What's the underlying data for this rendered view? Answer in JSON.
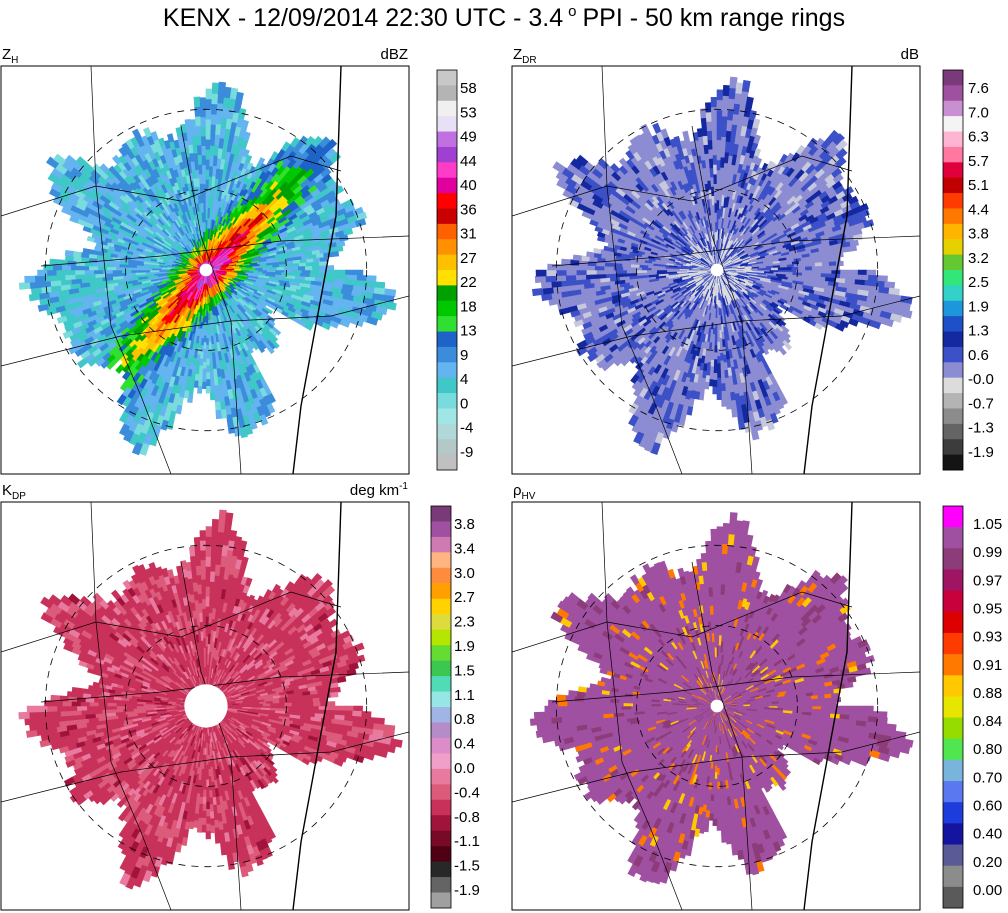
{
  "chart_data": {
    "type": "heatmap",
    "title": {
      "prefix": "KENX - 12/09/2014 22:30 UTC - 3.4",
      "degree": "o",
      "suffix": "PPI -  50 km range rings"
    },
    "panels": [
      {
        "id": "zh",
        "name": {
          "base": "Z",
          "sub": "H"
        },
        "units": {
          "base": "dBZ",
          "sup": ""
        },
        "colorbar_ticks": [
          "58",
          "53",
          "49",
          "44",
          "40",
          "36",
          "31",
          "27",
          "22",
          "18",
          "13",
          "9",
          "4",
          "0",
          "-4",
          "-9"
        ],
        "colorbar_colors": [
          "#c8c8c8",
          "#b4b4b4",
          "#f0f0f0",
          "#e8e0f4",
          "#c070e0",
          "#a040d0",
          "#ff3cc8",
          "#e000a0",
          "#ff0000",
          "#c80000",
          "#ff6000",
          "#ff9000",
          "#ffc000",
          "#ffe000",
          "#00a000",
          "#00c800",
          "#30e030",
          "#1e64c8",
          "#3c8cdc",
          "#64b4f0",
          "#40c8c8",
          "#78dcdc",
          "#a0e6e6",
          "#b0d8d8",
          "#b4c8c8",
          "#c0c0c0"
        ],
        "field": {
          "kind": "zh",
          "coverage_km": 112
        },
        "center_dot": {
          "radius_km": 1.6
        }
      },
      {
        "id": "zdr",
        "name": {
          "base": "Z",
          "sub": "DR"
        },
        "units": {
          "base": "dB",
          "sup": ""
        },
        "colorbar_ticks": [
          "7.6",
          "7.0",
          "6.3",
          "5.7",
          "5.1",
          "4.4",
          "3.8",
          "3.2",
          "2.5",
          "1.9",
          "1.3",
          "0.6",
          "-0.0",
          "-0.7",
          "-1.3",
          "-1.9"
        ],
        "colorbar_colors": [
          "#7a3a7a",
          "#a050a0",
          "#c890d0",
          "#f4f4f4",
          "#ffb4d2",
          "#ff78a0",
          "#e0003c",
          "#c00000",
          "#ff3c00",
          "#ff7800",
          "#ffb400",
          "#e6d000",
          "#64c832",
          "#32e678",
          "#32d2c8",
          "#1e96dc",
          "#1e50c8",
          "#1428a0",
          "#3c50c8",
          "#8c8cd2",
          "#dcdcdc",
          "#b4b4b4",
          "#8c8c8c",
          "#646464",
          "#3c3c3c",
          "#141414"
        ],
        "field": {
          "kind": "zdr",
          "coverage_km": 112
        },
        "center_dot": {
          "radius_km": 1.6
        }
      },
      {
        "id": "kdp",
        "name": {
          "base": "K",
          "sub": "DP"
        },
        "units": {
          "base": "deg km",
          "sup": "-1"
        },
        "colorbar_ticks": [
          "3.8",
          "3.4",
          "3.0",
          "2.7",
          "2.3",
          "1.9",
          "1.5",
          "1.1",
          "0.8",
          "0.4",
          "0.0",
          "-0.4",
          "-0.8",
          "-1.1",
          "-1.5",
          "-1.9"
        ],
        "colorbar_colors": [
          "#7a3a7a",
          "#a050a0",
          "#d07ab4",
          "#ffb482",
          "#ff8c3c",
          "#ffa000",
          "#ffd200",
          "#dcdc3c",
          "#b4e600",
          "#64dc32",
          "#3cc850",
          "#50dcb4",
          "#96e6e6",
          "#a0b4e6",
          "#b48cc8",
          "#dc8cc8",
          "#f0a0c8",
          "#e87aa0",
          "#dc5a7a",
          "#c8325a",
          "#a0143c",
          "#780a28",
          "#500014",
          "#282828",
          "#646464",
          "#a0a0a0"
        ],
        "field": {
          "kind": "kdp",
          "coverage_km": 112
        },
        "center_dot": {
          "radius_km": 5.4
        }
      },
      {
        "id": "rhohv",
        "name": {
          "base": "ρ",
          "sub": "HV"
        },
        "units": {
          "base": "",
          "sup": ""
        },
        "colorbar_ticks": [
          "1.05",
          "0.99",
          "0.97",
          "0.95",
          "0.93",
          "0.91",
          "0.88",
          "0.84",
          "0.80",
          "0.70",
          "0.60",
          "0.40",
          "0.20",
          "0.00"
        ],
        "colorbar_colors": [
          "#ff00ff",
          "#a050a0",
          "#8c3c78",
          "#a01464",
          "#c8003c",
          "#dc0000",
          "#ff3c00",
          "#ff7800",
          "#ffc800",
          "#e6e600",
          "#96dc00",
          "#50e650",
          "#78b4dc",
          "#5a78f0",
          "#1e3cdc",
          "#1414a0",
          "#5a5a96",
          "#8c8c8c",
          "#5a5a5a"
        ],
        "field": {
          "kind": "rhohv",
          "coverage_km": 112
        },
        "center_dot": {
          "radius_km": 1.6
        }
      }
    ],
    "range_rings_km": [
      50,
      100
    ],
    "map_outline_color": "#000000"
  }
}
